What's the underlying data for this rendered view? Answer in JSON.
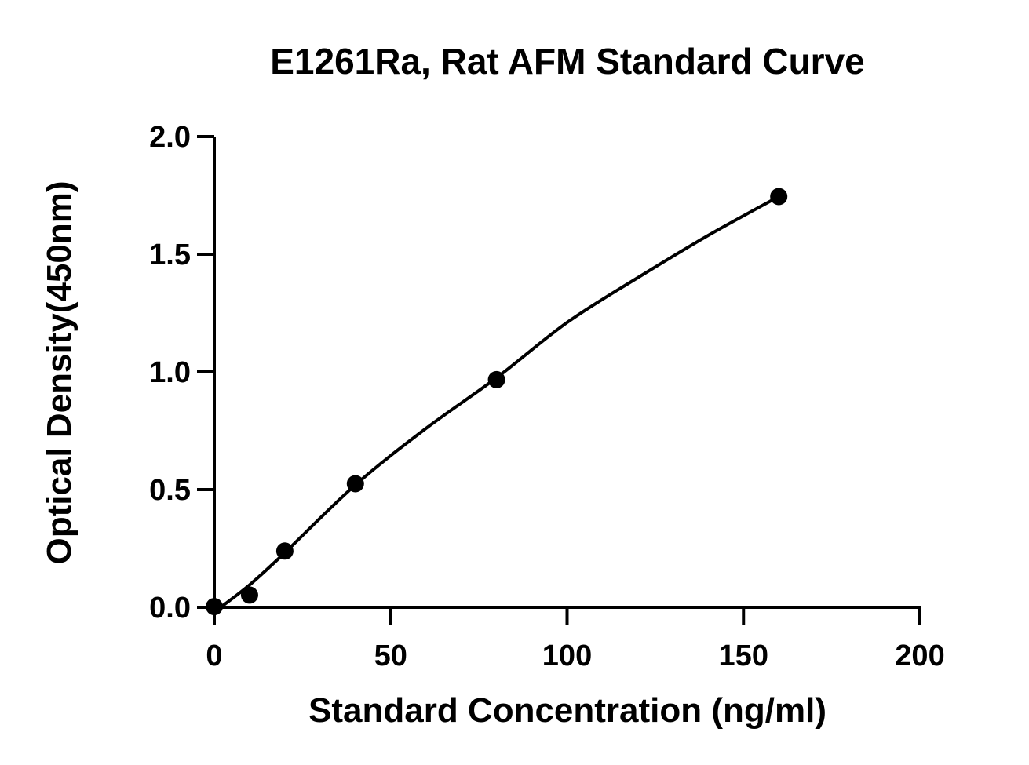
{
  "chart_data": {
    "type": "scatter",
    "title": "E1261Ra, Rat AFM Standard Curve",
    "xlabel": "Standard Concentration (ng/ml)",
    "ylabel": "Optical Density(450nm)",
    "xlim": [
      0,
      200
    ],
    "ylim": [
      0,
      2.0
    ],
    "x_ticks": [
      0,
      50,
      100,
      150,
      200
    ],
    "x_tick_labels": [
      "0",
      "50",
      "100",
      "150",
      "200"
    ],
    "y_ticks": [
      0,
      0.5,
      1.0,
      1.5,
      2.0
    ],
    "y_tick_labels": [
      "0.0",
      "0.5",
      "1.0",
      "1.5",
      "2.0"
    ],
    "grid": false,
    "series": [
      {
        "x": [
          0,
          10,
          20,
          40,
          80,
          160
        ],
        "y": [
          0.003,
          0.052,
          0.239,
          0.525,
          0.967,
          1.745
        ]
      }
    ],
    "fit_curve": {
      "type": "smooth",
      "x": [
        0,
        10,
        20,
        40,
        60,
        80,
        100,
        120,
        140,
        160
      ],
      "y": [
        -0.02,
        0.095,
        0.232,
        0.52,
        0.76,
        0.975,
        1.21,
        1.4,
        1.58,
        1.745
      ]
    },
    "colors": {
      "points": "#000000",
      "curve": "#000000",
      "axes": "#000000"
    }
  }
}
